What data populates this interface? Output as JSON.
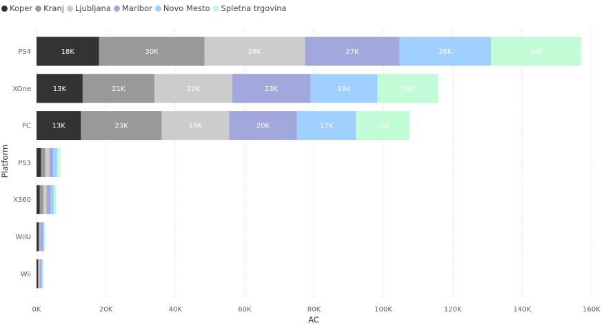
{
  "chart_data": {
    "type": "bar",
    "orientation": "horizontal",
    "stacked": true,
    "title": "",
    "xlabel": "AC",
    "ylabel": "Platform",
    "xlim": [
      0,
      160000
    ],
    "x_ticks": [
      0,
      20000,
      40000,
      60000,
      80000,
      100000,
      120000,
      140000,
      160000
    ],
    "x_tick_labels": [
      "0K",
      "20K",
      "40K",
      "60K",
      "80K",
      "100K",
      "120K",
      "140K",
      "160K"
    ],
    "grid": "vertical-dotted",
    "legend_position": "top-left",
    "categories": [
      "PS4",
      "XOne",
      "PC",
      "PS3",
      "X360",
      "WiiU",
      "Wii"
    ],
    "series": [
      {
        "name": "Koper",
        "color": "#333333",
        "values": [
          18000,
          13300,
          12800,
          1300,
          900,
          600,
          400
        ],
        "labels": [
          "18K",
          "13K",
          "13K",
          "",
          "",
          "",
          ""
        ]
      },
      {
        "name": "Kranj",
        "color": "#999999",
        "values": [
          30400,
          20700,
          23300,
          1200,
          1000,
          300,
          300
        ],
        "labels": [
          "30K",
          "21K",
          "23K",
          "",
          "",
          "",
          ""
        ]
      },
      {
        "name": "Ljubljana",
        "color": "#cccccc",
        "values": [
          29000,
          22400,
          19400,
          1200,
          1000,
          200,
          300
        ],
        "labels": [
          "29K",
          "22K",
          "19K",
          "",
          "",
          "",
          ""
        ]
      },
      {
        "name": "Maribor",
        "color": "#a3a8dc",
        "values": [
          27300,
          22600,
          19600,
          1100,
          1200,
          700,
          400
        ],
        "labels": [
          "27K",
          "23K",
          "20K",
          "",
          "",
          "",
          ""
        ]
      },
      {
        "name": "Novo Mesto",
        "color": "#a0d0ff",
        "values": [
          26300,
          19300,
          17000,
          1200,
          900,
          400,
          300
        ],
        "labels": [
          "26K",
          "19K",
          "17K",
          "",
          "",
          "",
          ""
        ]
      },
      {
        "name": "Spletna trgovina",
        "color": "#c2fcd6",
        "values": [
          26000,
          17500,
          15400,
          900,
          700,
          300,
          300
        ],
        "labels": [
          "26K",
          "18K",
          "15K",
          "",
          "",
          "",
          ""
        ]
      }
    ]
  }
}
